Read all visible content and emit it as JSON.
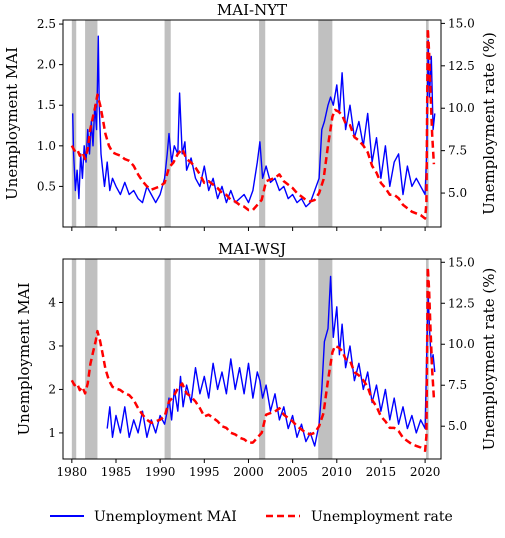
{
  "colors": {
    "mai": "#0000ff",
    "rate": "#ff0000",
    "recession": "#c0c0c0"
  },
  "legend": {
    "placement": "bottom-center",
    "mai_label": "Unemployment MAI",
    "rate_label": "Unemployment rate"
  },
  "chart_data": [
    {
      "type": "line",
      "title": "MAI-NYT",
      "ylabel_left": "Unemployment MAI",
      "ylabel_right": "Unemployment rate (%)",
      "xlim": [
        1979.0,
        2021.8
      ],
      "ylim_left": [
        0.0,
        2.55
      ],
      "ylim_right": [
        3.0,
        15.2
      ],
      "yticks_left": [
        0.5,
        1.0,
        1.5,
        2.0,
        2.5
      ],
      "yticks_right": [
        5.0,
        7.5,
        10.0,
        12.5,
        15.0
      ],
      "xticks": [
        1980,
        1985,
        1990,
        1995,
        2000,
        2005,
        2010,
        2015,
        2020
      ],
      "show_x_ticklabels": false,
      "grid": false,
      "recessions": [
        [
          1980.0,
          1980.5
        ],
        [
          1981.5,
          1982.9
        ],
        [
          1990.5,
          1991.2
        ],
        [
          2001.2,
          2001.9
        ],
        [
          2007.9,
          2009.5
        ],
        [
          2020.1,
          2020.4
        ]
      ],
      "series": [
        {
          "name": "Unemployment MAI",
          "axis": "left",
          "x": [
            1980.1,
            1980.2,
            1980.4,
            1980.6,
            1980.8,
            1981.0,
            1981.2,
            1981.4,
            1981.6,
            1981.8,
            1982.0,
            1982.2,
            1982.4,
            1982.6,
            1982.8,
            1983.0,
            1983.1,
            1983.3,
            1983.5,
            1983.7,
            1984.0,
            1984.3,
            1984.6,
            1985.0,
            1985.5,
            1986.0,
            1986.5,
            1987.0,
            1987.5,
            1988.0,
            1988.5,
            1989.0,
            1989.5,
            1990.0,
            1990.5,
            1990.8,
            1991.0,
            1991.3,
            1991.6,
            1992.0,
            1992.2,
            1992.5,
            1992.8,
            1993.0,
            1993.5,
            1994.0,
            1994.5,
            1995.0,
            1995.5,
            1996.0,
            1996.5,
            1997.0,
            1997.5,
            1998.0,
            1998.5,
            1999.0,
            1999.5,
            2000.0,
            2000.5,
            2001.0,
            2001.3,
            2001.6,
            2002.0,
            2002.5,
            2003.0,
            2003.5,
            2004.0,
            2004.5,
            2005.0,
            2005.5,
            2006.0,
            2006.5,
            2007.0,
            2007.5,
            2008.0,
            2008.3,
            2008.6,
            2009.0,
            2009.3,
            2009.6,
            2010.0,
            2010.3,
            2010.6,
            2011.0,
            2011.5,
            2012.0,
            2012.5,
            2013.0,
            2013.5,
            2014.0,
            2014.5,
            2015.0,
            2015.5,
            2016.0,
            2016.5,
            2017.0,
            2017.5,
            2018.0,
            2018.5,
            2019.0,
            2019.5,
            2020.0,
            2020.2,
            2020.35,
            2020.5,
            2020.7,
            2020.9,
            2021.1
          ],
          "values": [
            1.4,
            0.9,
            0.45,
            0.7,
            0.35,
            0.9,
            0.6,
            1.0,
            0.8,
            1.2,
            0.9,
            1.3,
            1.0,
            1.5,
            1.2,
            2.35,
            1.5,
            0.9,
            0.7,
            0.5,
            0.8,
            0.45,
            0.6,
            0.5,
            0.4,
            0.55,
            0.4,
            0.45,
            0.35,
            0.3,
            0.5,
            0.4,
            0.3,
            0.4,
            0.6,
            0.9,
            1.15,
            0.8,
            1.0,
            0.9,
            1.65,
            0.9,
            1.05,
            0.7,
            0.85,
            0.6,
            0.5,
            0.75,
            0.45,
            0.6,
            0.35,
            0.5,
            0.3,
            0.45,
            0.3,
            0.35,
            0.4,
            0.3,
            0.45,
            0.8,
            1.05,
            0.6,
            0.75,
            0.55,
            0.6,
            0.45,
            0.5,
            0.35,
            0.4,
            0.3,
            0.35,
            0.25,
            0.3,
            0.45,
            0.6,
            1.2,
            1.3,
            1.5,
            1.6,
            1.5,
            1.75,
            1.4,
            1.9,
            1.2,
            1.5,
            1.1,
            1.3,
            1.0,
            1.4,
            0.8,
            1.1,
            0.6,
            1.0,
            0.5,
            0.8,
            0.9,
            0.4,
            0.75,
            0.5,
            0.6,
            0.5,
            0.4,
            1.0,
            2.3,
            1.6,
            2.1,
            1.2,
            1.4
          ]
        },
        {
          "name": "Unemployment rate",
          "axis": "right",
          "x": [
            1980.0,
            1980.3,
            1980.6,
            1980.9,
            1981.2,
            1981.5,
            1981.8,
            1982.1,
            1982.4,
            1982.7,
            1982.9,
            1983.2,
            1983.5,
            1983.8,
            1984.2,
            1984.6,
            1985.0,
            1985.5,
            1986.0,
            1986.5,
            1987.0,
            1987.5,
            1988.0,
            1988.5,
            1989.0,
            1989.5,
            1990.0,
            1990.5,
            1991.0,
            1991.5,
            1992.0,
            1992.5,
            1993.0,
            1993.5,
            1994.0,
            1994.5,
            1995.0,
            1995.5,
            1996.0,
            1996.5,
            1997.0,
            1997.5,
            1998.0,
            1998.5,
            1999.0,
            1999.5,
            2000.0,
            2000.5,
            2001.0,
            2001.5,
            2002.0,
            2002.5,
            2003.0,
            2003.5,
            2004.0,
            2004.5,
            2005.0,
            2005.5,
            2006.0,
            2006.5,
            2007.0,
            2007.5,
            2008.0,
            2008.5,
            2009.0,
            2009.5,
            2009.8,
            2010.2,
            2010.6,
            2011.0,
            2011.5,
            2012.0,
            2012.5,
            2013.0,
            2013.5,
            2014.0,
            2014.5,
            2015.0,
            2015.5,
            2016.0,
            2016.5,
            2017.0,
            2017.5,
            2018.0,
            2018.5,
            2019.0,
            2019.5,
            2020.0,
            2020.15,
            2020.3,
            2020.45,
            2020.6,
            2020.8,
            2021.0
          ],
          "values": [
            7.8,
            7.5,
            7.6,
            7.2,
            7.4,
            7.0,
            7.6,
            8.8,
            9.5,
            10.2,
            10.8,
            10.2,
            9.4,
            8.5,
            7.8,
            7.4,
            7.3,
            7.2,
            7.0,
            6.9,
            6.6,
            6.1,
            5.7,
            5.4,
            5.2,
            5.3,
            5.4,
            5.6,
            6.5,
            6.8,
            7.3,
            7.6,
            7.0,
            6.8,
            6.5,
            6.1,
            5.6,
            5.7,
            5.5,
            5.3,
            5.0,
            4.9,
            4.6,
            4.5,
            4.3,
            4.2,
            4.0,
            4.0,
            4.3,
            4.6,
            5.7,
            5.8,
            5.9,
            6.1,
            5.7,
            5.5,
            5.3,
            5.0,
            4.8,
            4.6,
            4.5,
            4.6,
            5.0,
            5.8,
            7.8,
            9.5,
            9.9,
            9.8,
            9.6,
            9.1,
            9.0,
            8.3,
            8.1,
            7.8,
            7.4,
            6.6,
            6.2,
            5.6,
            5.3,
            4.9,
            4.9,
            4.7,
            4.3,
            4.1,
            3.9,
            3.8,
            3.7,
            3.5,
            4.4,
            14.7,
            13.3,
            11.1,
            8.4,
            6.7
          ]
        }
      ]
    },
    {
      "type": "line",
      "title": "MAI-WSJ",
      "ylabel_left": "Unemployment MAI",
      "ylabel_right": "Unemployment rate (%)",
      "xlim": [
        1979.0,
        2021.8
      ],
      "ylim_left": [
        0.4,
        5.0
      ],
      "ylim_right": [
        3.0,
        15.2
      ],
      "yticks_left": [
        1,
        2,
        3,
        4
      ],
      "yticks_right": [
        5.0,
        7.5,
        10.0,
        12.5,
        15.0
      ],
      "xticks": [
        1980,
        1985,
        1990,
        1995,
        2000,
        2005,
        2010,
        2015,
        2020
      ],
      "show_x_ticklabels": true,
      "grid": false,
      "recessions": [
        [
          1980.0,
          1980.5
        ],
        [
          1981.5,
          1982.9
        ],
        [
          1990.5,
          1991.2
        ],
        [
          2001.2,
          2001.9
        ],
        [
          2007.9,
          2009.5
        ],
        [
          2020.1,
          2020.4
        ]
      ],
      "series": [
        {
          "name": "Unemployment MAI",
          "axis": "left",
          "x": [
            1984.0,
            1984.3,
            1984.6,
            1985.0,
            1985.5,
            1986.0,
            1986.5,
            1987.0,
            1987.5,
            1988.0,
            1988.5,
            1989.0,
            1989.5,
            1990.0,
            1990.5,
            1990.8,
            1991.0,
            1991.3,
            1991.6,
            1992.0,
            1992.3,
            1992.6,
            1993.0,
            1993.5,
            1994.0,
            1994.5,
            1995.0,
            1995.5,
            1996.0,
            1996.5,
            1997.0,
            1997.5,
            1998.0,
            1998.5,
            1999.0,
            1999.5,
            2000.0,
            2000.5,
            2001.0,
            2001.3,
            2001.6,
            2002.0,
            2002.5,
            2003.0,
            2003.5,
            2004.0,
            2004.5,
            2005.0,
            2005.5,
            2006.0,
            2006.5,
            2007.0,
            2007.5,
            2008.0,
            2008.3,
            2008.6,
            2009.0,
            2009.3,
            2009.6,
            2010.0,
            2010.3,
            2010.6,
            2011.0,
            2011.5,
            2012.0,
            2012.5,
            2013.0,
            2013.5,
            2014.0,
            2014.5,
            2015.0,
            2015.5,
            2016.0,
            2016.5,
            2017.0,
            2017.5,
            2018.0,
            2018.5,
            2019.0,
            2019.5,
            2020.0,
            2020.2,
            2020.35,
            2020.5,
            2020.7,
            2020.9,
            2021.1
          ],
          "values": [
            1.1,
            1.6,
            0.9,
            1.4,
            1.0,
            1.6,
            0.9,
            1.3,
            1.0,
            1.5,
            0.9,
            1.3,
            1.0,
            1.4,
            1.2,
            1.5,
            1.8,
            1.3,
            2.0,
            1.5,
            2.3,
            1.6,
            2.1,
            1.7,
            2.5,
            1.9,
            2.3,
            1.8,
            2.6,
            2.0,
            2.4,
            1.9,
            2.7,
            2.0,
            2.5,
            1.9,
            2.6,
            1.8,
            2.4,
            2.2,
            1.8,
            2.1,
            1.5,
            1.9,
            1.3,
            1.6,
            1.1,
            1.4,
            0.9,
            1.2,
            0.8,
            1.0,
            0.7,
            1.2,
            2.0,
            3.1,
            3.4,
            4.6,
            3.2,
            3.9,
            2.8,
            3.5,
            2.5,
            3.0,
            2.2,
            2.6,
            2.0,
            2.4,
            1.7,
            2.1,
            1.5,
            2.0,
            1.3,
            1.8,
            1.2,
            1.6,
            1.1,
            1.4,
            1.0,
            1.3,
            1.1,
            3.0,
            4.2,
            3.4,
            2.6,
            2.8,
            2.4
          ]
        },
        {
          "name": "Unemployment rate",
          "axis": "right",
          "x": [
            1980.0,
            1980.3,
            1980.6,
            1980.9,
            1981.2,
            1981.5,
            1981.8,
            1982.1,
            1982.4,
            1982.7,
            1982.9,
            1983.2,
            1983.5,
            1983.8,
            1984.2,
            1984.6,
            1985.0,
            1985.5,
            1986.0,
            1986.5,
            1987.0,
            1987.5,
            1988.0,
            1988.5,
            1989.0,
            1989.5,
            1990.0,
            1990.5,
            1991.0,
            1991.5,
            1992.0,
            1992.5,
            1993.0,
            1993.5,
            1994.0,
            1994.5,
            1995.0,
            1995.5,
            1996.0,
            1996.5,
            1997.0,
            1997.5,
            1998.0,
            1998.5,
            1999.0,
            1999.5,
            2000.0,
            2000.5,
            2001.0,
            2001.5,
            2002.0,
            2002.5,
            2003.0,
            2003.5,
            2004.0,
            2004.5,
            2005.0,
            2005.5,
            2006.0,
            2006.5,
            2007.0,
            2007.5,
            2008.0,
            2008.5,
            2009.0,
            2009.5,
            2009.8,
            2010.2,
            2010.6,
            2011.0,
            2011.5,
            2012.0,
            2012.5,
            2013.0,
            2013.5,
            2014.0,
            2014.5,
            2015.0,
            2015.5,
            2016.0,
            2016.5,
            2017.0,
            2017.5,
            2018.0,
            2018.5,
            2019.0,
            2019.5,
            2020.0,
            2020.15,
            2020.3,
            2020.45,
            2020.6,
            2020.8,
            2021.0
          ],
          "values": [
            7.8,
            7.5,
            7.6,
            7.2,
            7.4,
            7.0,
            7.6,
            8.8,
            9.5,
            10.2,
            10.8,
            10.2,
            9.4,
            8.5,
            7.8,
            7.4,
            7.3,
            7.2,
            7.0,
            6.9,
            6.6,
            6.1,
            5.7,
            5.4,
            5.2,
            5.3,
            5.4,
            5.6,
            6.5,
            6.8,
            7.3,
            7.6,
            7.0,
            6.8,
            6.5,
            6.1,
            5.6,
            5.7,
            5.5,
            5.3,
            5.0,
            4.9,
            4.6,
            4.5,
            4.3,
            4.2,
            4.0,
            4.0,
            4.3,
            4.6,
            5.7,
            5.8,
            5.9,
            6.1,
            5.7,
            5.5,
            5.3,
            5.0,
            4.8,
            4.6,
            4.5,
            4.6,
            5.0,
            5.8,
            7.8,
            9.5,
            9.9,
            9.8,
            9.6,
            9.1,
            9.0,
            8.3,
            8.1,
            7.8,
            7.4,
            6.6,
            6.2,
            5.6,
            5.3,
            4.9,
            4.9,
            4.7,
            4.3,
            4.1,
            3.9,
            3.8,
            3.7,
            3.5,
            4.4,
            14.7,
            13.3,
            11.1,
            8.4,
            6.7
          ]
        }
      ]
    }
  ]
}
